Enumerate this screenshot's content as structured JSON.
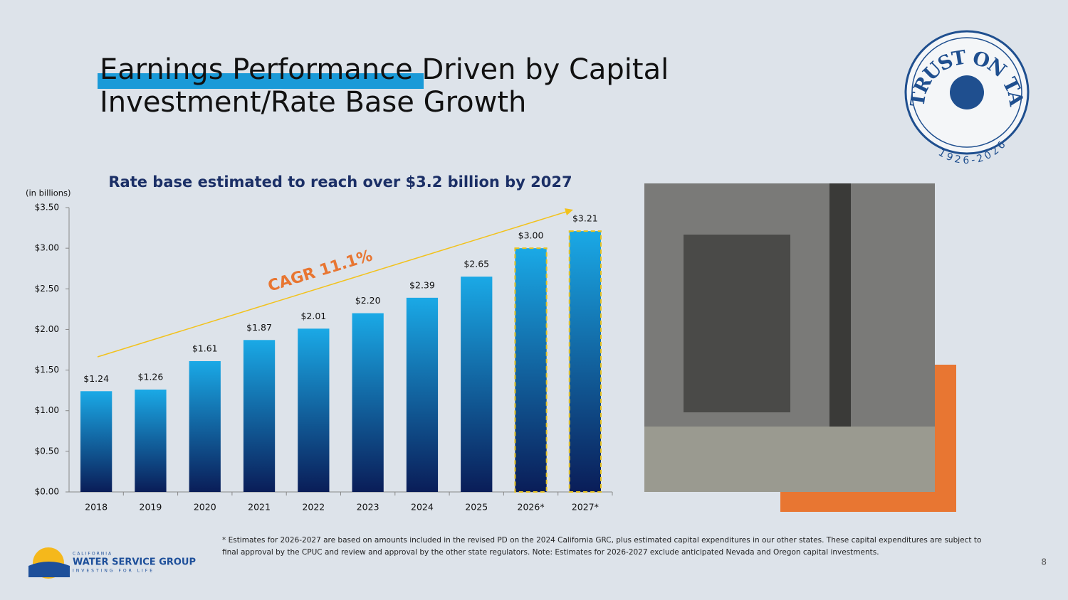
{
  "slide": {
    "title_line1": "Earnings Performance Driven by Capital",
    "title_line2": "Investment/Rate Base Growth",
    "badge_text": "TRUST ON TAP",
    "badge_years": "1926-2026",
    "footnote": "* Estimates for 2026-2027 are based on amounts included in the revised PD on the 2024 California GRC, plus estimated capital expenditures in our other states. These capital expenditures are subject to final approval by the CPUC and review and approval by the other state regulators. Note: Estimates for 2026-2027 exclude anticipated Nevada and Oregon capital investments.",
    "logo_top": "CALIFORNIA",
    "logo_name": "WATER SERVICE GROUP",
    "logo_tagline": "INVESTING FOR LIFE",
    "page_number": "8"
  },
  "chart_data": {
    "type": "bar",
    "title": "Rate base estimated to reach over $3.2 billion by 2027",
    "y_label": "(in billions)",
    "annotation": "CAGR 11.1%",
    "categories": [
      "2018",
      "2019",
      "2020",
      "2021",
      "2022",
      "2023",
      "2024",
      "2025",
      "2026*",
      "2027*"
    ],
    "values": [
      1.24,
      1.26,
      1.61,
      1.87,
      2.01,
      2.2,
      2.39,
      2.65,
      3.0,
      3.21
    ],
    "value_labels": [
      "$1.24",
      "$1.26",
      "$1.61",
      "$1.87",
      "$2.01",
      "$2.20",
      "$2.39",
      "$2.65",
      "$3.00",
      "$3.21"
    ],
    "colors": [
      "#1aa9e6",
      "#0a1d58"
    ],
    "estimate_outline_color": "#e8c21e",
    "ylim": [
      0,
      3.5
    ],
    "yticks": [
      {
        "value": 0,
        "label": "$0.00"
      },
      {
        "value": 0.5,
        "label": "$0.50"
      },
      {
        "value": 1,
        "label": "$1.00"
      },
      {
        "value": 1.5,
        "label": "$1.50"
      },
      {
        "value": 2,
        "label": "$2.00"
      },
      {
        "value": 2.5,
        "label": "$2.50"
      },
      {
        "value": 3,
        "label": "$3.00"
      },
      {
        "value": 3.5,
        "label": "$3.50"
      }
    ],
    "grid": false
  }
}
